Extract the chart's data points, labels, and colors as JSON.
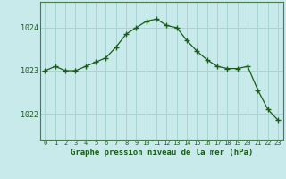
{
  "x": [
    0,
    1,
    2,
    3,
    4,
    5,
    6,
    7,
    8,
    9,
    10,
    11,
    12,
    13,
    14,
    15,
    16,
    17,
    18,
    19,
    20,
    21,
    22,
    23
  ],
  "y": [
    1023.0,
    1023.1,
    1023.0,
    1023.0,
    1023.1,
    1023.2,
    1023.3,
    1023.55,
    1023.85,
    1024.0,
    1024.15,
    1024.2,
    1024.05,
    1024.0,
    1023.7,
    1023.45,
    1023.25,
    1023.1,
    1023.05,
    1023.05,
    1023.1,
    1022.55,
    1022.1,
    1021.85
  ],
  "line_color": "#1a5c1a",
  "marker_color": "#1a5c1a",
  "bg_color": "#c8eaea",
  "grid_color": "#aad4d4",
  "title": "Graphe pression niveau de la mer (hPa)",
  "xlabel_ticks": [
    "0",
    "1",
    "2",
    "3",
    "4",
    "5",
    "6",
    "7",
    "8",
    "9",
    "10",
    "11",
    "12",
    "13",
    "14",
    "15",
    "16",
    "17",
    "18",
    "19",
    "20",
    "21",
    "22",
    "23"
  ],
  "yticks": [
    1022,
    1023,
    1024
  ],
  "ylim": [
    1021.4,
    1024.6
  ],
  "xlim": [
    -0.5,
    23.5
  ]
}
